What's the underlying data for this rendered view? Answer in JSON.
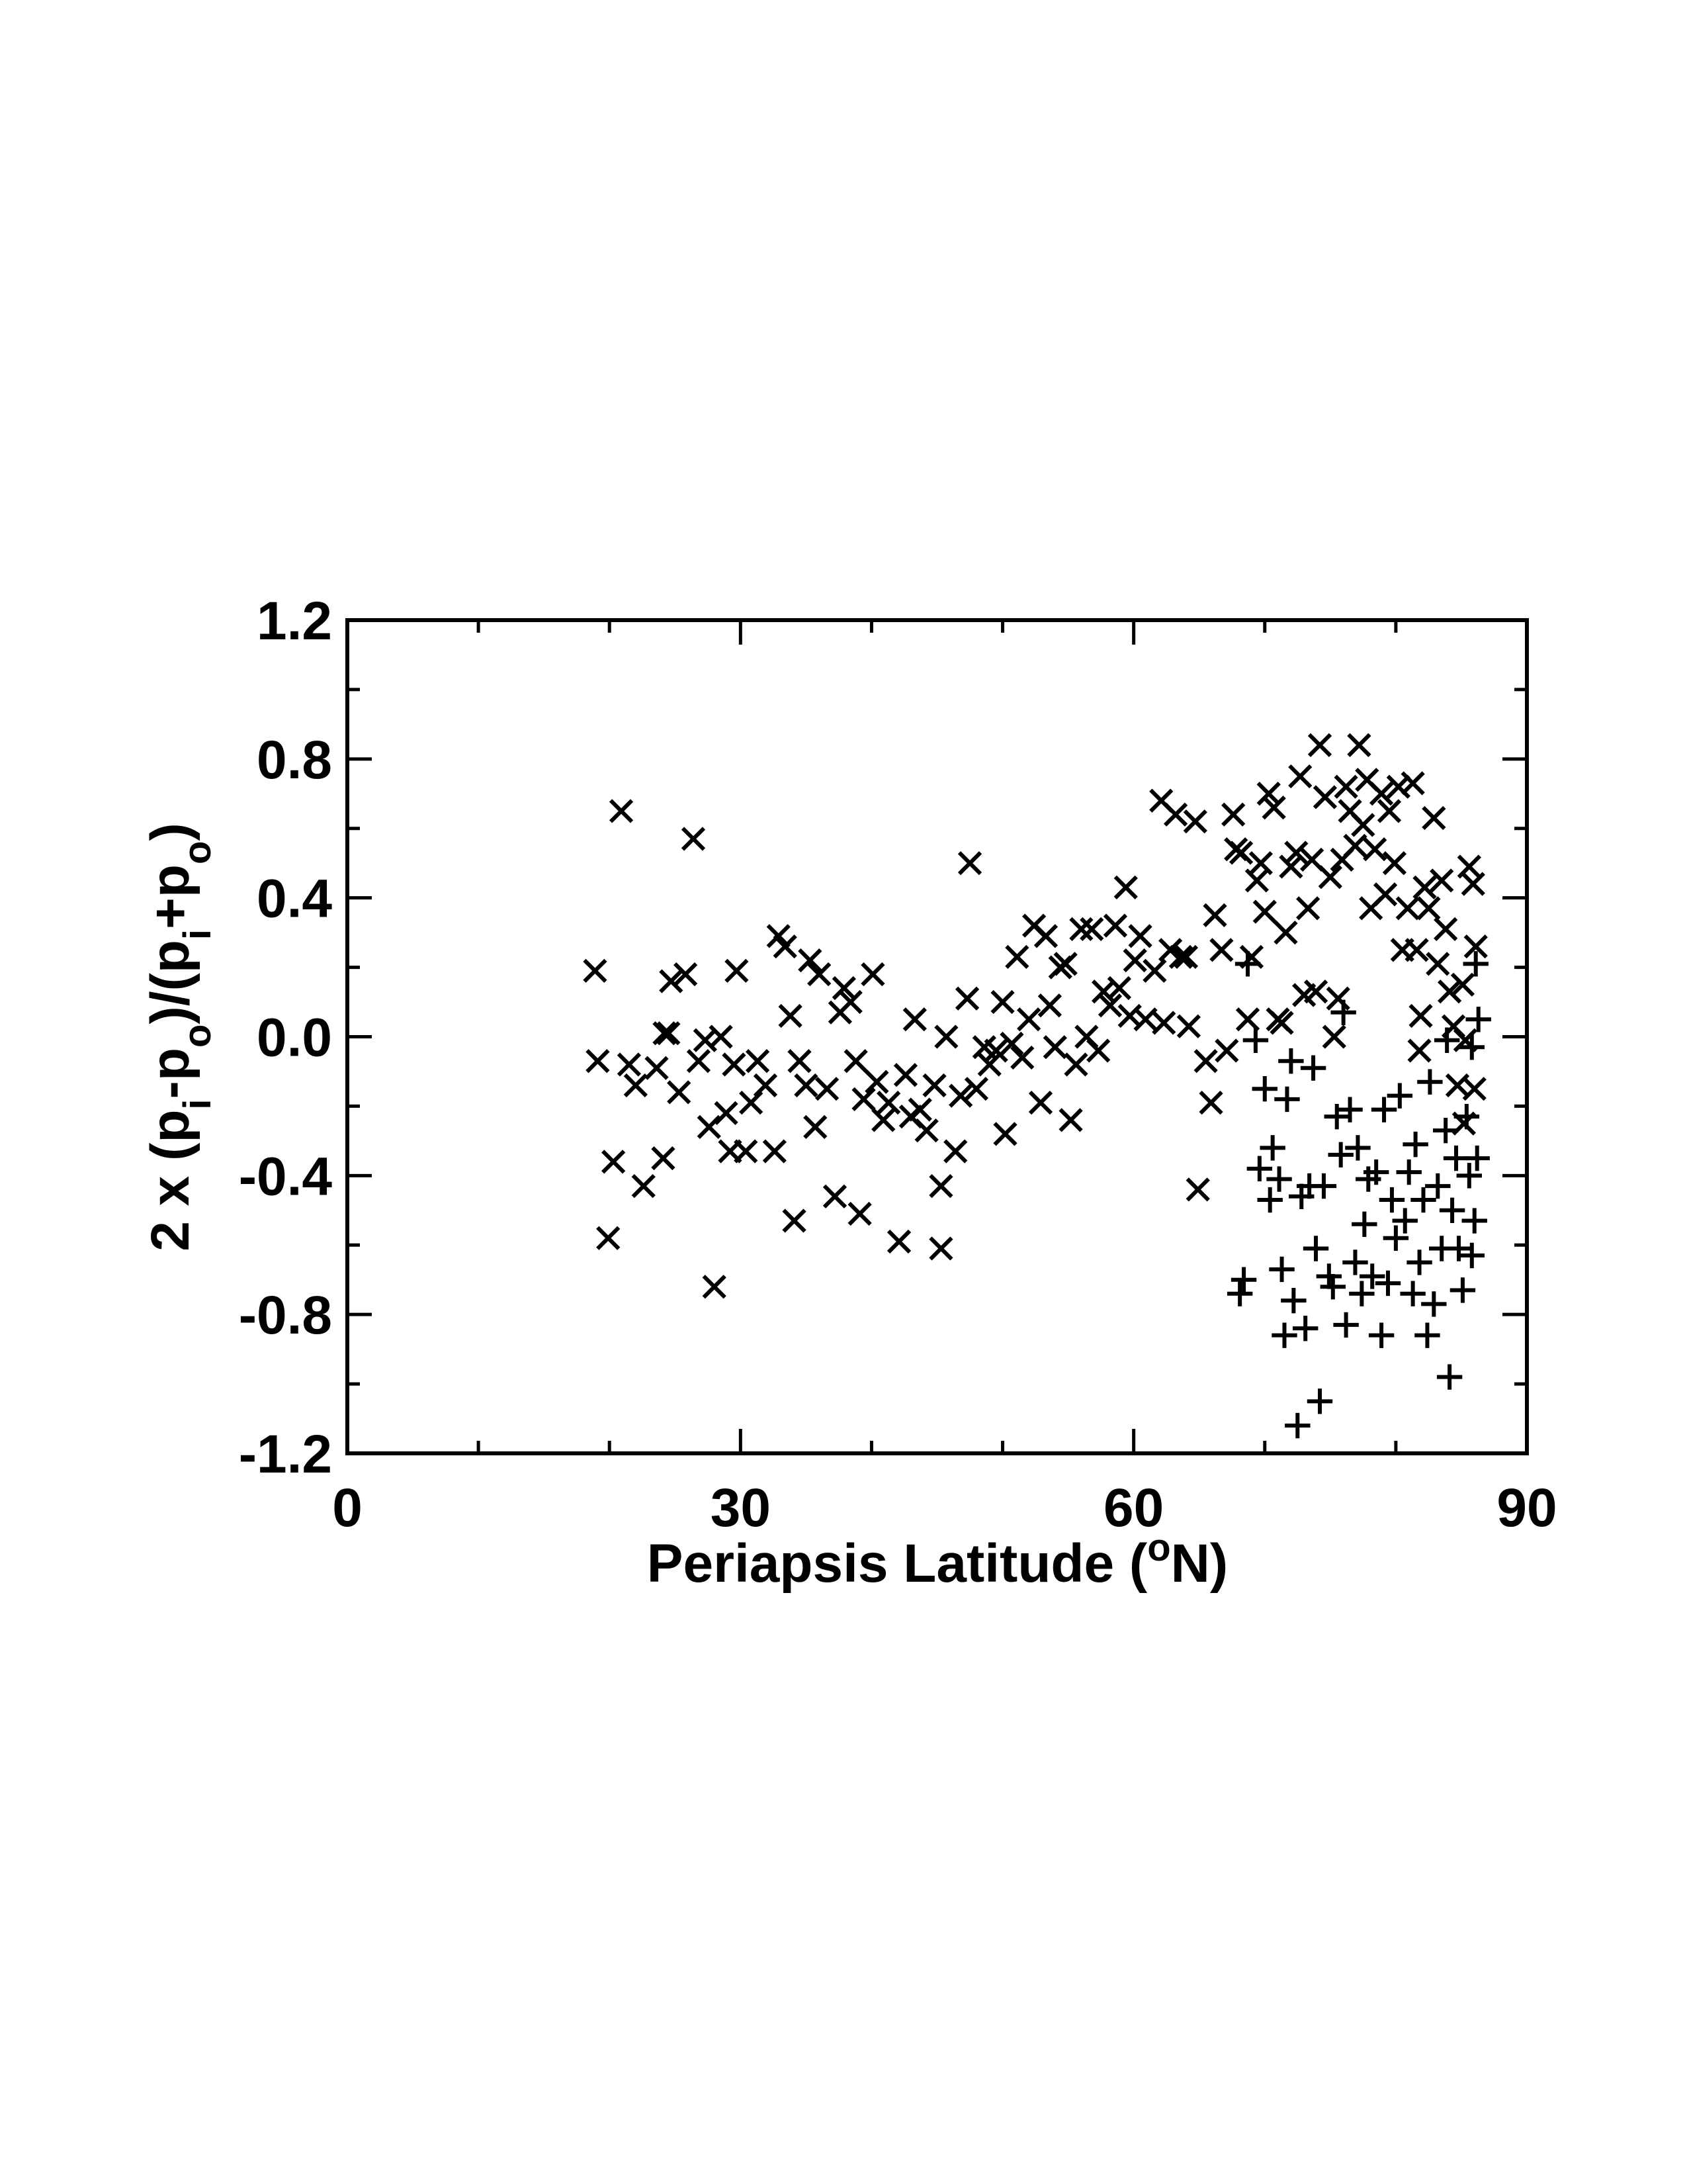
{
  "chart_data": {
    "type": "scatter",
    "xlabel": [
      "Periapsis Latitude (",
      "o",
      "N)"
    ],
    "ylabel": [
      "2 x (p",
      "i",
      "-p",
      "o",
      ")/(p",
      "i",
      "+p",
      "o",
      ")"
    ],
    "xlim": [
      0,
      90
    ],
    "ylim": [
      -1.2,
      1.2
    ],
    "xticks": [
      0,
      30,
      60,
      90
    ],
    "yticks": [
      -1.2,
      -0.8,
      -0.4,
      {
        "value": 0,
        "label": "0.0"
      },
      0.4,
      0.8,
      1.2
    ],
    "xminorticks": [
      10,
      20,
      40,
      50,
      70,
      80
    ],
    "yminorticks": [
      -1.0,
      -0.6,
      -0.2,
      0.2,
      0.6,
      1.0
    ],
    "series": [
      {
        "marker": "x",
        "color": "#000000",
        "x": [
          18.9,
          19.1,
          20.3,
          19.9,
          20.9,
          21.5,
          22.0,
          22.6,
          23.6,
          24.1,
          24.2,
          24.5,
          24.7,
          25.3,
          25.8,
          26.4,
          26.8,
          27.3,
          27.6,
          28.0,
          28.5,
          28.9,
          29.2,
          29.5,
          29.7,
          30.4,
          30.8,
          31.3,
          31.9,
          32.6,
          32.9,
          33.4,
          33.8,
          34.1,
          34.5,
          35.0,
          35.3,
          35.7,
          36.0,
          36.6,
          37.2,
          37.6,
          37.9,
          38.4,
          38.8,
          39.1,
          39.4,
          40.1,
          40.4,
          40.9,
          41.3,
          42.1,
          42.6,
          43.0,
          43.3,
          43.7,
          44.2,
          44.8,
          45.3,
          45.3,
          45.7,
          46.4,
          46.8,
          47.3,
          47.5,
          48.0,
          48.6,
          49.0,
          49.5,
          50.0,
          50.2,
          50.7,
          51.1,
          51.5,
          52.0,
          52.4,
          52.9,
          53.3,
          53.6,
          54.0,
          54.4,
          54.8,
          55.2,
          55.6,
          56.0,
          56.4,
          56.8,
          57.3,
          57.7,
          58.2,
          58.6,
          58.9,
          59.4,
          59.7,
          60.1,
          60.5,
          60.9,
          61.6,
          62.1,
          62.3,
          62.8,
          63.2,
          63.6,
          64.0,
          64.2,
          64.7,
          64.9,
          65.5,
          65.9,
          66.2,
          66.7,
          67.1,
          67.6,
          67.8,
          68.2,
          68.7,
          69.0,
          69.4,
          69.7,
          70.0,
          70.3,
          70.7,
          71.0,
          71.3,
          71.6,
          72.0,
          72.4,
          72.7,
          73.0,
          73.3,
          73.6,
          73.9,
          74.2,
          74.6,
          75.0,
          75.3,
          75.6,
          75.9,
          76.2,
          76.5,
          76.9,
          77.2,
          77.5,
          77.8,
          78.1,
          78.4,
          78.9,
          79.2,
          79.5,
          79.9,
          80.2,
          80.5,
          80.9,
          81.3,
          81.6,
          81.9,
          82.2,
          82.5,
          82.9,
          83.2,
          83.5,
          83.8,
          84.1,
          84.4,
          84.7,
          85.1,
          85.3,
          85.6,
          85.9,
          86.1,
          86.0,
          85.2,
          81.8
        ],
        "y": [
          0.19,
          -0.07,
          -0.36,
          -0.58,
          0.65,
          -0.08,
          -0.14,
          -0.43,
          -0.09,
          -0.35,
          0.01,
          0.01,
          0.16,
          -0.16,
          0.18,
          0.57,
          -0.07,
          -0.01,
          -0.26,
          -0.72,
          0.0,
          -0.22,
          -0.33,
          -0.08,
          0.19,
          -0.33,
          -0.19,
          -0.07,
          -0.14,
          -0.33,
          0.29,
          0.26,
          0.06,
          -0.53,
          -0.07,
          -0.14,
          0.22,
          -0.26,
          0.18,
          -0.15,
          -0.46,
          0.07,
          0.14,
          0.1,
          -0.07,
          -0.51,
          -0.18,
          0.18,
          -0.13,
          -0.24,
          -0.19,
          -0.59,
          -0.11,
          -0.23,
          0.05,
          -0.21,
          -0.27,
          -0.14,
          -0.43,
          -0.61,
          0.0,
          -0.33,
          -0.17,
          0.11,
          0.5,
          -0.15,
          -0.03,
          -0.08,
          -0.04,
          0.1,
          -0.28,
          -0.02,
          0.23,
          -0.06,
          0.05,
          0.32,
          -0.19,
          0.29,
          0.09,
          -0.03,
          0.2,
          0.21,
          -0.24,
          -0.08,
          0.31,
          0.0,
          0.31,
          -0.04,
          0.13,
          0.09,
          0.32,
          0.14,
          0.43,
          0.06,
          0.22,
          0.29,
          0.05,
          0.19,
          0.68,
          0.04,
          0.25,
          0.64,
          0.23,
          0.23,
          0.03,
          0.62,
          -0.44,
          -0.07,
          -0.19,
          0.35,
          0.25,
          -0.04,
          0.64,
          0.54,
          0.53,
          0.05,
          0.23,
          0.45,
          0.5,
          0.36,
          0.7,
          0.66,
          0.05,
          0.04,
          0.3,
          0.49,
          0.53,
          0.75,
          0.12,
          0.37,
          0.51,
          0.13,
          0.84,
          0.69,
          0.46,
          0.0,
          0.11,
          0.51,
          0.72,
          0.65,
          0.55,
          0.84,
          0.61,
          0.74,
          0.37,
          0.54,
          0.7,
          0.41,
          0.65,
          0.5,
          0.72,
          0.25,
          0.37,
          0.73,
          0.25,
          0.06,
          0.43,
          0.37,
          0.63,
          0.21,
          0.45,
          0.31,
          0.13,
          0.03,
          -0.14,
          0.15,
          -0.01,
          0.49,
          0.44,
          0.26,
          -0.15,
          -0.25,
          -0.04
        ]
      },
      {
        "marker": "+",
        "color": "#000000",
        "x": [
          68.1,
          68.4,
          68.7,
          69.3,
          69.6,
          70.0,
          70.4,
          70.6,
          71.1,
          71.3,
          71.5,
          71.7,
          72.0,
          72.2,
          72.5,
          72.8,
          73.1,
          73.4,
          73.7,
          73.9,
          74.2,
          74.5,
          74.9,
          75.2,
          75.5,
          75.8,
          76.0,
          76.2,
          76.5,
          76.9,
          77.1,
          77.4,
          77.6,
          77.9,
          78.2,
          78.5,
          78.9,
          79.1,
          79.4,
          79.7,
          80.0,
          80.3,
          80.7,
          81.0,
          81.3,
          81.5,
          81.8,
          82.1,
          82.4,
          82.6,
          82.9,
          83.2,
          83.5,
          83.8,
          84.1,
          84.3,
          84.6,
          84.8,
          85.1,
          85.4,
          85.6,
          85.8,
          86.0,
          86.2,
          86.3,
          86.1,
          85.8,
          83.9
        ],
        "y": [
          -0.74,
          -0.7,
          0.21,
          -0.01,
          -0.38,
          -0.15,
          -0.47,
          -0.32,
          -0.41,
          -0.67,
          -0.86,
          -0.18,
          -0.07,
          -0.76,
          -1.12,
          -0.46,
          -0.84,
          -0.43,
          -0.09,
          -0.61,
          -1.05,
          -0.43,
          -0.69,
          -0.72,
          -0.23,
          -0.34,
          0.07,
          -0.83,
          -0.21,
          -0.65,
          -0.32,
          -0.74,
          -0.54,
          -0.41,
          -0.69,
          -0.39,
          -0.86,
          -0.21,
          -0.71,
          -0.47,
          -0.58,
          -0.17,
          -0.53,
          -0.39,
          -0.74,
          -0.31,
          -0.65,
          -0.47,
          -0.86,
          -0.13,
          -0.77,
          -0.43,
          -0.61,
          -0.27,
          -0.98,
          -0.5,
          -0.35,
          -0.61,
          -0.73,
          -0.23,
          -0.4,
          -0.63,
          -0.53,
          -0.35,
          0.05,
          0.21,
          -0.03,
          -0.01
        ]
      }
    ]
  }
}
